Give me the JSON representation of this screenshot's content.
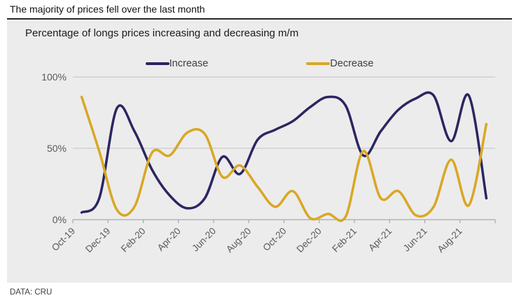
{
  "page": {
    "headline": "The majority of prices fell over the last month",
    "source_note": "DATA: CRU"
  },
  "chart": {
    "title": "Percentage of longs prices increasing and decreasing m/m"
  },
  "chart_data": {
    "type": "line",
    "title": "Percentage of longs prices increasing and decreasing m/m",
    "line_style": "smooth",
    "grid": "horizontal",
    "legend_position": "top",
    "x": [
      "Oct-19",
      "Nov-19",
      "Dec-19",
      "Jan-20",
      "Feb-20",
      "Mar-20",
      "Apr-20",
      "May-20",
      "Jun-20",
      "Jul-20",
      "Aug-20",
      "Sep-20",
      "Oct-20",
      "Nov-20",
      "Dec-20",
      "Jan-21",
      "Feb-21",
      "Mar-21",
      "Apr-21",
      "May-21",
      "Jun-21",
      "Jul-21",
      "Aug-21",
      "Sep-21"
    ],
    "x_tick_labels": [
      "Oct-19",
      "Dec-19",
      "Feb-20",
      "Apr-20",
      "Jun-20",
      "Aug-20",
      "Oct-20",
      "Dec-20",
      "Feb-21",
      "Apr-21",
      "Jun-21",
      "Aug-21"
    ],
    "ylim": [
      0,
      100
    ],
    "yticks": [
      {
        "value": 0,
        "label": "0%"
      },
      {
        "value": 50,
        "label": "50%"
      },
      {
        "value": 100,
        "label": "100%"
      }
    ],
    "series": [
      {
        "name": "Increase",
        "color": "#2b2661",
        "values": [
          5,
          15,
          78,
          62,
          35,
          17,
          8,
          15,
          44,
          32,
          56,
          63,
          69,
          79,
          86,
          80,
          45,
          62,
          77,
          85,
          87,
          55,
          87,
          15
        ]
      },
      {
        "name": "Decrease",
        "color": "#d9a724",
        "values": [
          86,
          48,
          7,
          9,
          47,
          45,
          61,
          60,
          30,
          38,
          23,
          9,
          20,
          1,
          4,
          2,
          48,
          15,
          20,
          3,
          9,
          42,
          10,
          67
        ]
      }
    ]
  },
  "colors": {
    "panel_bg": "#ececec",
    "grid": "#c2c2c2",
    "axis": "#a8a8a8",
    "tick_label": "#595959",
    "headline_rule": "#262626"
  }
}
